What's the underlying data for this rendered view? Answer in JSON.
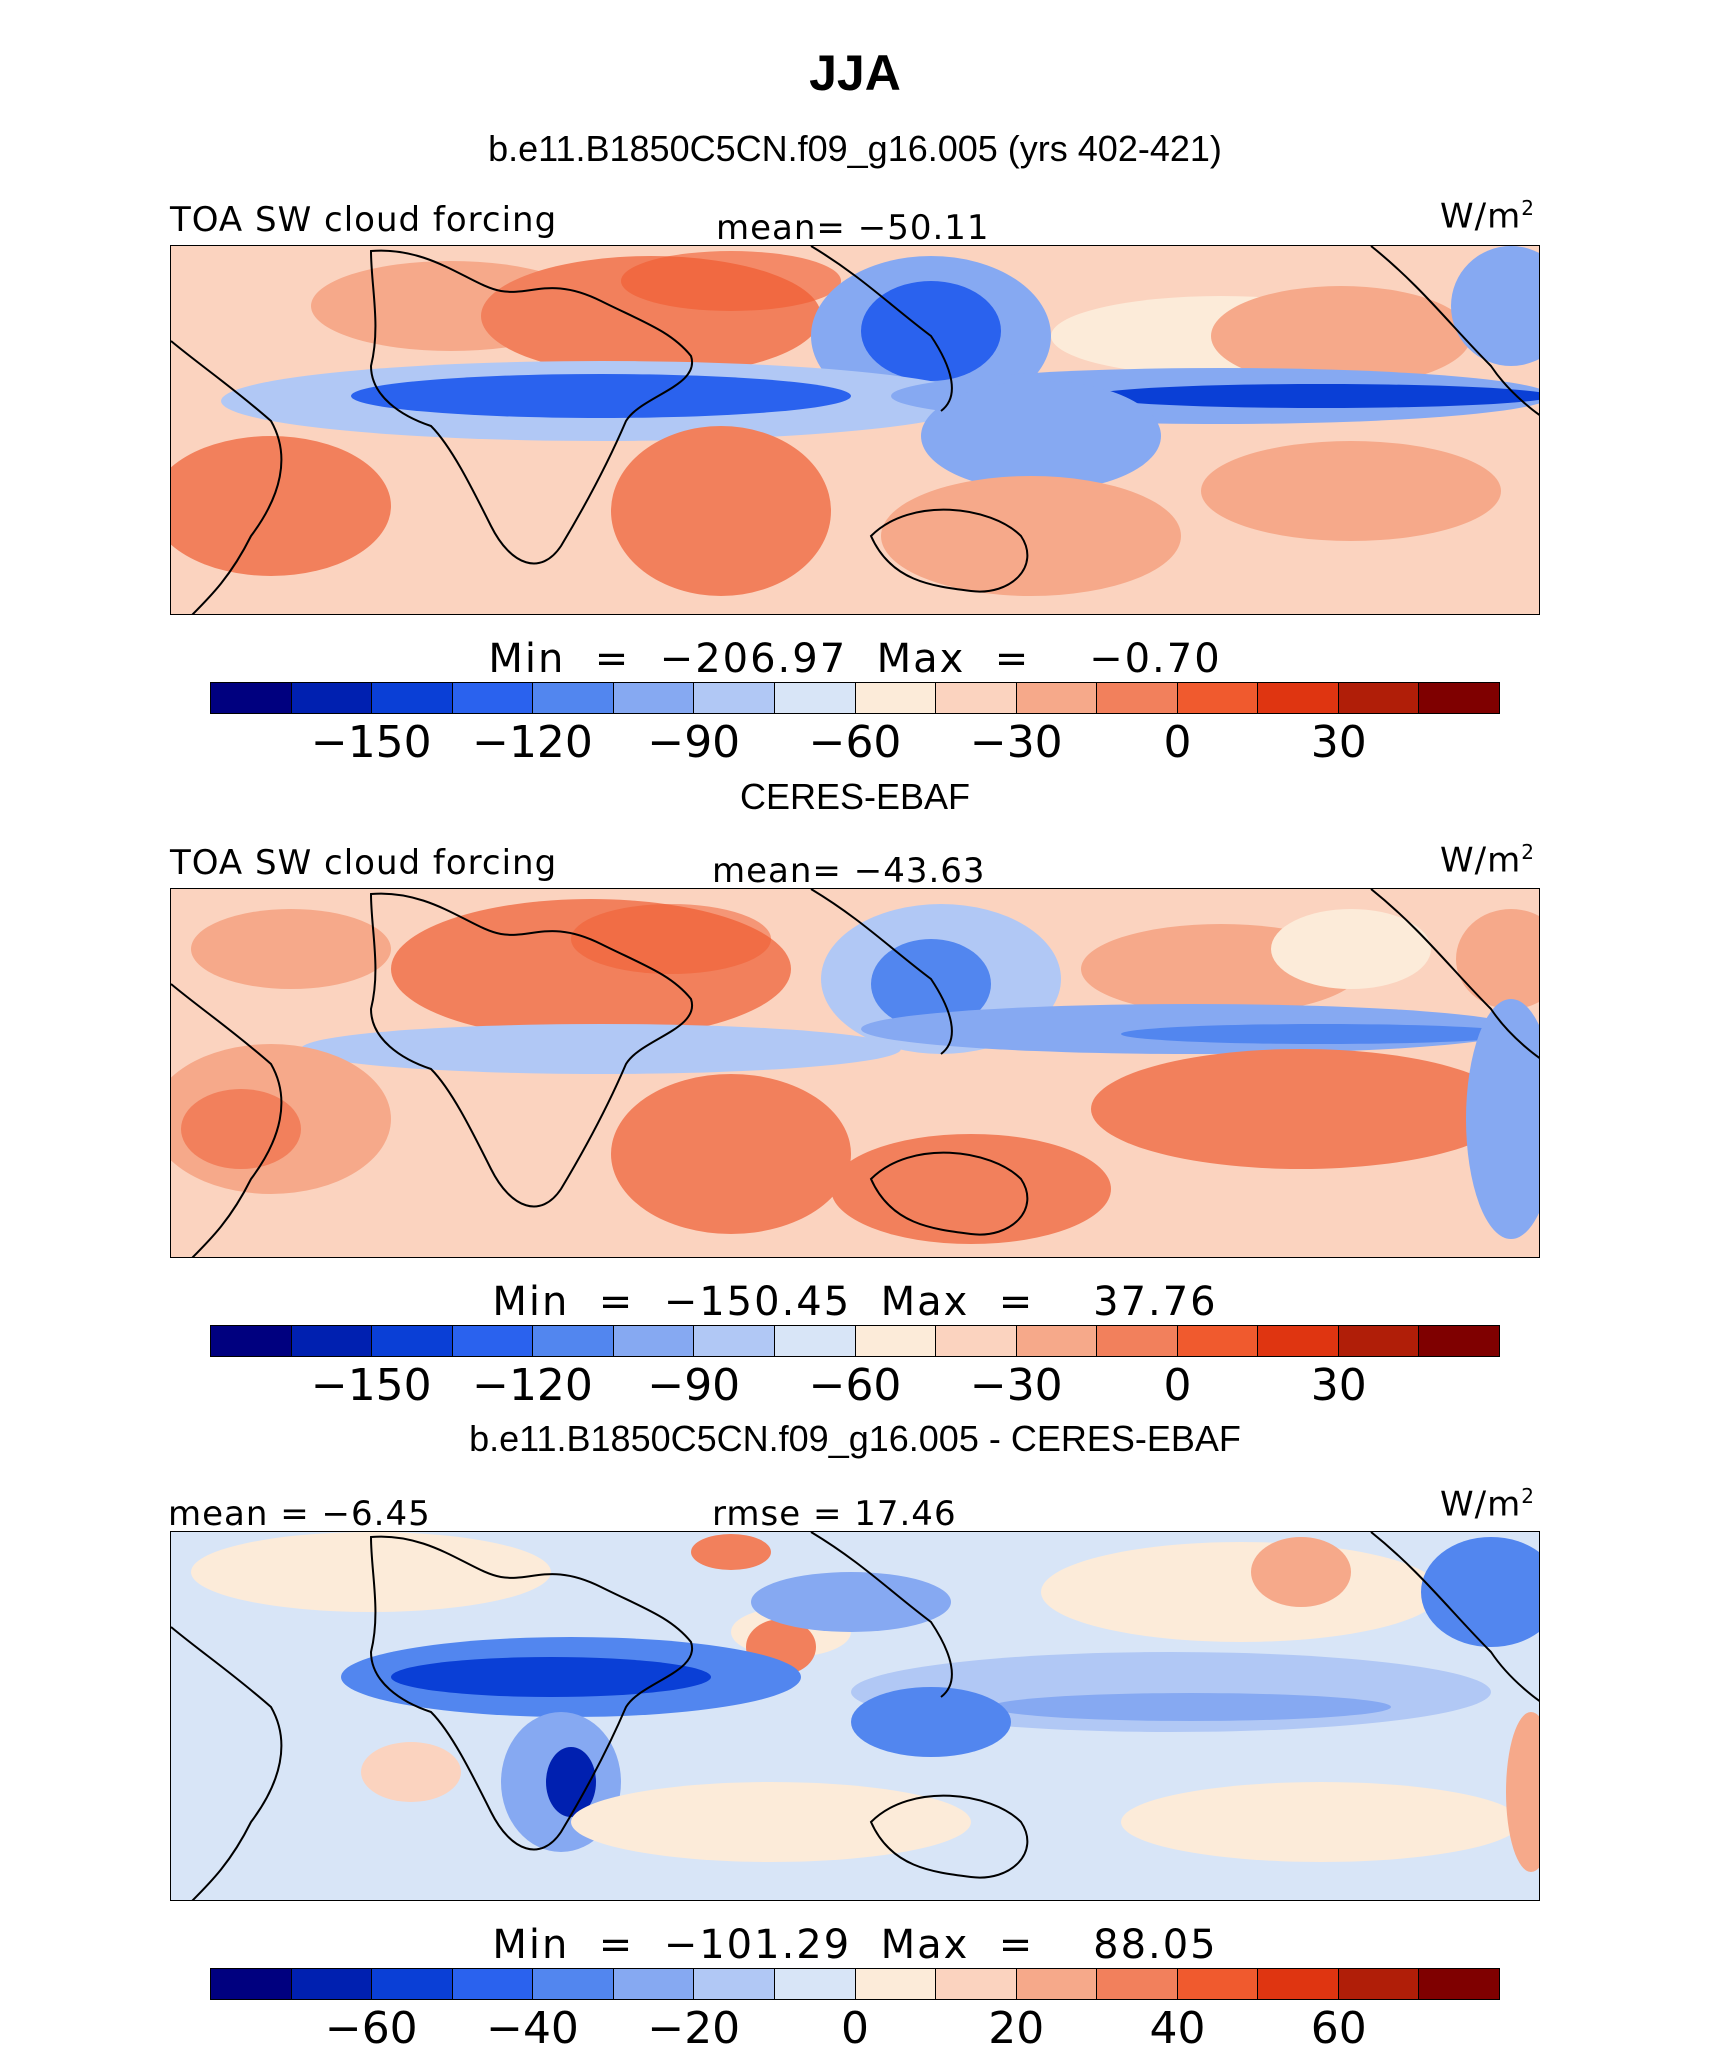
{
  "figure": {
    "title": "JJA",
    "model_subtitle": "b.e11.B1850C5CN.f09_g16.005 (yrs 402-421)",
    "obs_subtitle": "CERES-EBAF",
    "diff_subtitle": "b.e11.B1850C5CN.f09_g16.005 - CERES-EBAF"
  },
  "panels": [
    {
      "left_label": "TOA SW cloud forcing",
      "center_label": "mean= −50.11",
      "units": "W/m",
      "units_sup": "2",
      "minmax": "Min  =  −206.97  Max  =    −0.70",
      "colorbar_ticks": [
        "−150",
        "−120",
        "−90",
        "−60",
        "−30",
        "0",
        "30"
      ]
    },
    {
      "left_label": "TOA SW cloud forcing",
      "center_label": "mean= −43.63",
      "units": "W/m",
      "units_sup": "2",
      "minmax": "Min  =  −150.45  Max  =    37.76",
      "colorbar_ticks": [
        "−150",
        "−120",
        "−90",
        "−60",
        "−30",
        "0",
        "30"
      ]
    },
    {
      "left_label": "mean  =   −6.45",
      "center_label": "rmse  =   17.46",
      "units": "W/m",
      "units_sup": "2",
      "minmax": "Min  =  −101.29  Max  =    88.05",
      "colorbar_ticks": [
        "−60",
        "−40",
        "−20",
        "0",
        "20",
        "40",
        "60"
      ]
    }
  ],
  "colors": {
    "palette": [
      "#00007f",
      "#0020b0",
      "#0a3fd6",
      "#2a62ee",
      "#5286ef",
      "#86a9f2",
      "#b1c8f5",
      "#d8e5f7",
      "#fcebd9",
      "#fbd3bf",
      "#f6a98a",
      "#f2805c",
      "#f05a2e",
      "#df3511",
      "#b01e08",
      "#7f0000"
    ],
    "land_line": "#000000"
  }
}
